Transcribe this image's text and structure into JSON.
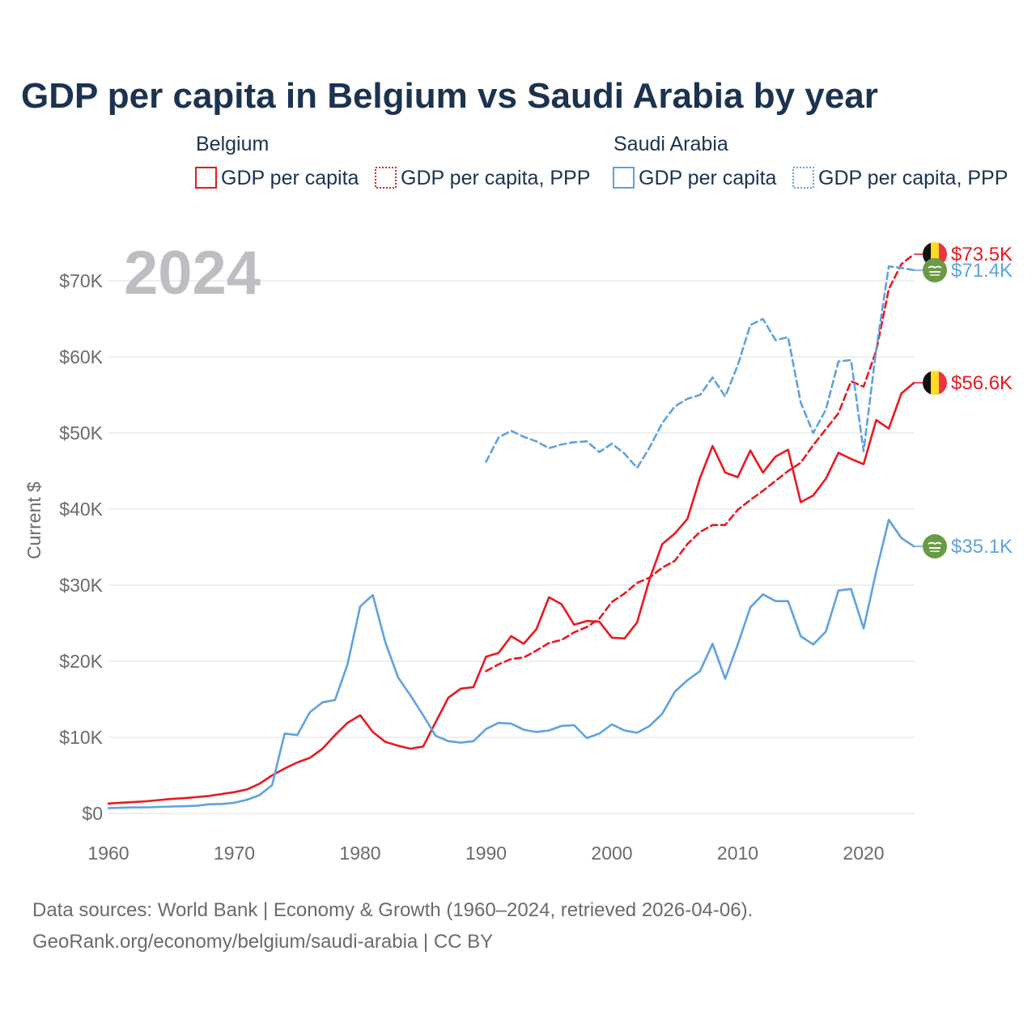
{
  "title": "GDP per capita in Belgium vs Saudi Arabia by year",
  "year_watermark": "2024",
  "legend": {
    "groups": [
      {
        "name": "Belgium",
        "items": [
          {
            "label": "GDP per capita",
            "style": "solid",
            "color": "#e8191f"
          },
          {
            "label": "GDP per capita, PPP",
            "style": "dotted",
            "color": "#e8191f"
          }
        ]
      },
      {
        "name": "Saudi Arabia",
        "items": [
          {
            "label": "GDP per capita",
            "style": "solid",
            "color": "#5fa2e0"
          },
          {
            "label": "GDP per capita, PPP",
            "style": "dotted",
            "color": "#5fa2e0"
          }
        ]
      }
    ]
  },
  "end_labels": [
    {
      "text": "$73.5K",
      "series": "belgium_ppp",
      "flag": "belgium-flag-icon"
    },
    {
      "text": "$71.4K",
      "series": "saudi_ppp",
      "flag": "saudi-flag-icon"
    },
    {
      "text": "$56.6K",
      "series": "belgium_gdp",
      "flag": "belgium-flag-icon"
    },
    {
      "text": "$35.1K",
      "series": "saudi_gdp",
      "flag": "saudi-flag-icon"
    }
  ],
  "source_lines": [
    "Data sources: World Bank | Economy & Growth (1960–2024, retrieved 2026-04-06).",
    "GeoRank.org/economy/belgium/saudi-arabia | CC BY"
  ],
  "chart_data": {
    "type": "line",
    "title": "GDP per capita in Belgium vs Saudi Arabia by year",
    "xlabel": "",
    "ylabel": "Current $",
    "xlim": [
      1960,
      2024
    ],
    "ylim": [
      0,
      75000
    ],
    "x_ticks": [
      1960,
      1970,
      1980,
      1990,
      2000,
      2010,
      2020
    ],
    "x_tick_labels": [
      "1960",
      "1970",
      "1980",
      "1990",
      "2000",
      "2010",
      "2020"
    ],
    "y_ticks": [
      0,
      10000,
      20000,
      30000,
      40000,
      50000,
      60000,
      70000
    ],
    "y_tick_labels": [
      "$0",
      "$10K",
      "$20K",
      "$30K",
      "$40K",
      "$50K",
      "$60K",
      "$70K"
    ],
    "grid": true,
    "series": [
      {
        "key": "belgium_gdp",
        "name": "Belgium GDP per capita",
        "color": "#e8191f",
        "dash": "solid",
        "x": [
          1960,
          1961,
          1962,
          1963,
          1964,
          1965,
          1966,
          1967,
          1968,
          1969,
          1970,
          1971,
          1972,
          1973,
          1974,
          1975,
          1976,
          1977,
          1978,
          1979,
          1980,
          1981,
          1982,
          1983,
          1984,
          1985,
          1986,
          1987,
          1988,
          1989,
          1990,
          1991,
          1992,
          1993,
          1994,
          1995,
          1996,
          1997,
          1998,
          1999,
          2000,
          2001,
          2002,
          2003,
          2004,
          2005,
          2006,
          2007,
          2008,
          2009,
          2010,
          2011,
          2012,
          2013,
          2014,
          2015,
          2016,
          2017,
          2018,
          2019,
          2020,
          2021,
          2022,
          2023,
          2024
        ],
        "values": [
          1300,
          1400,
          1500,
          1600,
          1750,
          1900,
          2000,
          2150,
          2300,
          2550,
          2800,
          3150,
          3900,
          5000,
          5900,
          6700,
          7300,
          8500,
          10300,
          11900,
          12900,
          10700,
          9400,
          8900,
          8500,
          8800,
          12000,
          15200,
          16400,
          16600,
          20600,
          21100,
          23300,
          22300,
          24200,
          28400,
          27500,
          24800,
          25300,
          25200,
          23100,
          23000,
          25100,
          30800,
          35400,
          36800,
          38700,
          44100,
          48300,
          44800,
          44200,
          47700,
          44800,
          46900,
          47800,
          40900,
          41800,
          44000,
          47400,
          46600,
          45900,
          51700,
          50600,
          55200,
          56600
        ]
      },
      {
        "key": "belgium_ppp",
        "name": "Belgium GDP per capita, PPP",
        "color": "#e8191f",
        "dash": "dashed",
        "x": [
          1990,
          1991,
          1992,
          1993,
          1994,
          1995,
          1996,
          1997,
          1998,
          1999,
          2000,
          2001,
          2002,
          2003,
          2004,
          2005,
          2006,
          2007,
          2008,
          2009,
          2010,
          2011,
          2012,
          2013,
          2014,
          2015,
          2016,
          2017,
          2018,
          2019,
          2020,
          2021,
          2022,
          2023,
          2024
        ],
        "values": [
          18700,
          19600,
          20300,
          20500,
          21400,
          22400,
          22800,
          23800,
          24500,
          25600,
          27800,
          28900,
          30300,
          31000,
          32300,
          33200,
          35400,
          37000,
          37900,
          37900,
          39900,
          41200,
          42400,
          43700,
          45000,
          46100,
          48400,
          50500,
          52600,
          56800,
          56100,
          60800,
          68900,
          72200,
          73500
        ]
      },
      {
        "key": "saudi_gdp",
        "name": "Saudi Arabia GDP per capita",
        "color": "#5fa2e0",
        "dash": "solid",
        "x": [
          1960,
          1961,
          1962,
          1963,
          1964,
          1965,
          1966,
          1967,
          1968,
          1969,
          1970,
          1971,
          1972,
          1973,
          1974,
          1975,
          1976,
          1977,
          1978,
          1979,
          1980,
          1981,
          1982,
          1983,
          1984,
          1985,
          1986,
          1987,
          1988,
          1989,
          1990,
          1991,
          1992,
          1993,
          1994,
          1995,
          1996,
          1997,
          1998,
          1999,
          2000,
          2001,
          2002,
          2003,
          2004,
          2005,
          2006,
          2007,
          2008,
          2009,
          2010,
          2011,
          2012,
          2013,
          2014,
          2015,
          2016,
          2017,
          2018,
          2019,
          2020,
          2021,
          2022,
          2023,
          2024
        ],
        "values": [
          700,
          750,
          800,
          800,
          850,
          900,
          950,
          1000,
          1200,
          1250,
          1400,
          1800,
          2400,
          3700,
          10500,
          10300,
          13300,
          14600,
          14900,
          19600,
          27200,
          28700,
          22500,
          17900,
          15500,
          12900,
          10200,
          9500,
          9300,
          9500,
          11100,
          11900,
          11800,
          11000,
          10700,
          10900,
          11500,
          11600,
          9900,
          10500,
          11700,
          10900,
          10600,
          11500,
          13100,
          16000,
          17500,
          18700,
          22300,
          17700,
          22200,
          27100,
          28800,
          27900,
          27900,
          23300,
          22200,
          23900,
          29300,
          29500,
          24300,
          31800,
          38600,
          36200,
          35100
        ]
      },
      {
        "key": "saudi_ppp",
        "name": "Saudi Arabia GDP per capita, PPP",
        "color": "#5fa2e0",
        "dash": "dashed",
        "x": [
          1990,
          1991,
          1992,
          1993,
          1994,
          1995,
          1996,
          1997,
          1998,
          1999,
          2000,
          2001,
          2002,
          2003,
          2004,
          2005,
          2006,
          2007,
          2008,
          2009,
          2010,
          2011,
          2012,
          2013,
          2014,
          2015,
          2016,
          2017,
          2018,
          2019,
          2020,
          2021,
          2022,
          2023,
          2024
        ],
        "values": [
          46200,
          49400,
          50300,
          49500,
          48900,
          48000,
          48500,
          48800,
          48900,
          47500,
          48600,
          47300,
          45400,
          48100,
          51300,
          53500,
          54500,
          55000,
          57300,
          54800,
          58900,
          64200,
          65000,
          62200,
          62600,
          54000,
          50000,
          53100,
          59400,
          59600,
          47600,
          61000,
          71900,
          71700,
          71400
        ]
      }
    ]
  }
}
